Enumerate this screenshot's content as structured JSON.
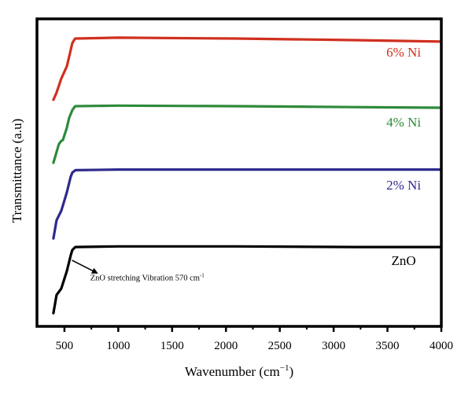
{
  "chart_data": {
    "type": "line",
    "title": "",
    "xlabel": "Wavenumber (cm",
    "xlabel_sup": "−1",
    "xlabel_close": ")",
    "ylabel": "Transmittance (a.u)",
    "xlim": [
      245,
      4000
    ],
    "ylim": [
      0,
      100
    ],
    "xticks": [
      500,
      1000,
      1500,
      2000,
      2500,
      3000,
      3500,
      4000
    ],
    "xtick_labels": [
      "500",
      "1000",
      "1500",
      "2000",
      "2500",
      "3000",
      "3500",
      "4000"
    ],
    "x_minor_ticks": [
      750,
      1250,
      1750,
      2250,
      2750,
      3250,
      3750
    ],
    "yticks_shown": false,
    "grid": false,
    "legend": "inline labels at right",
    "series": [
      {
        "name": "6% Ni",
        "color": "#d0301f",
        "x": [
          398,
          427,
          471,
          522,
          544,
          573,
          595,
          602,
          997,
          2092,
          3188,
          4000
        ],
        "y": [
          73.7,
          76.0,
          80.6,
          84.5,
          87.7,
          92.1,
          93.4,
          93.6,
          93.9,
          93.6,
          93.1,
          92.6
        ]
      },
      {
        "name": "4% Ni",
        "color": "#2e8b3a",
        "x": [
          398,
          449,
          471,
          485,
          522,
          544,
          573,
          595,
          602,
          997,
          2092,
          3188,
          4000
        ],
        "y": [
          53.2,
          59.3,
          60.3,
          60.6,
          64.5,
          67.8,
          70.3,
          71.4,
          71.6,
          71.8,
          71.6,
          71.3,
          71.1
        ]
      },
      {
        "name": "2% Ni",
        "color": "#2e2a8c",
        "x": [
          398,
          427,
          471,
          522,
          558,
          573,
          595,
          602,
          997,
          2092,
          3188,
          4000
        ],
        "y": [
          28.6,
          34.5,
          37.6,
          43.5,
          48.6,
          50.0,
          50.6,
          50.8,
          51.0,
          51.0,
          51.0,
          51.0
        ]
      },
      {
        "name": "ZnO",
        "color": "#000000",
        "x": [
          398,
          427,
          471,
          522,
          558,
          573,
          595,
          602,
          997,
          2092,
          3188,
          4000
        ],
        "y": [
          4.3,
          10.2,
          12.3,
          17.9,
          23.0,
          24.8,
          25.6,
          25.8,
          26.0,
          26.0,
          25.8,
          25.8
        ]
      }
    ],
    "series_labels": [
      {
        "text": "6% Ni",
        "x": 3650,
        "y": 87.7,
        "color": "#d0301f"
      },
      {
        "text": "4% Ni",
        "x": 3650,
        "y": 65.0,
        "color": "#2e8b3a"
      },
      {
        "text": "2% Ni",
        "x": 3650,
        "y": 44.5,
        "color": "#2e2a8c"
      },
      {
        "text": "ZnO",
        "x": 3650,
        "y": 20.0,
        "color": "#000000"
      }
    ],
    "annotation": {
      "text": "ZnO stretching Vibration 570 cm",
      "sup": "-1",
      "arrow_from": [
        570,
        21.5
      ],
      "arrow_to": [
        800,
        17.4
      ],
      "text_at": [
        740,
        15.0
      ]
    }
  }
}
